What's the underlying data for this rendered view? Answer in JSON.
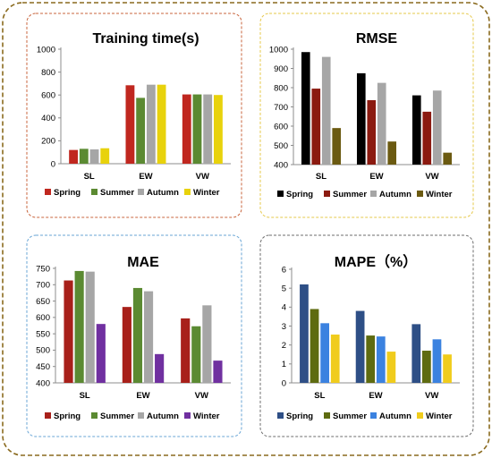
{
  "chart_data": [
    {
      "type": "bar",
      "title": "Training time(s)",
      "categories": [
        "SL",
        "EW",
        "VW"
      ],
      "ylim": [
        0,
        1000
      ],
      "yticks": [
        0,
        200,
        400,
        600,
        800,
        1000
      ],
      "legend_position": "bottom",
      "series": [
        {
          "name": "Spring",
          "color": "#c0271f",
          "values": [
            120,
            685,
            605
          ]
        },
        {
          "name": "Summer",
          "color": "#5b8a32",
          "values": [
            130,
            575,
            605
          ]
        },
        {
          "name": "Autumn",
          "color": "#a6a6a6",
          "values": [
            125,
            690,
            605
          ]
        },
        {
          "name": "Winter",
          "color": "#e8d20c",
          "values": [
            135,
            690,
            600
          ]
        }
      ]
    },
    {
      "type": "bar",
      "title": "RMSE",
      "categories": [
        "SL",
        "EW",
        "VW"
      ],
      "ylim": [
        400,
        1000
      ],
      "yticks": [
        400,
        500,
        600,
        700,
        800,
        900,
        1000
      ],
      "legend_position": "bottom",
      "series": [
        {
          "name": "Spring",
          "color": "#000000",
          "values": [
            985,
            875,
            760
          ]
        },
        {
          "name": "Summer",
          "color": "#8b1a10",
          "values": [
            795,
            735,
            675
          ]
        },
        {
          "name": "Autumn",
          "color": "#a6a6a6",
          "values": [
            960,
            825,
            785
          ]
        },
        {
          "name": "Winter",
          "color": "#6b5a11",
          "values": [
            590,
            520,
            462
          ]
        }
      ]
    },
    {
      "type": "bar",
      "title": "MAE",
      "categories": [
        "SL",
        "EW",
        "VW"
      ],
      "ylim": [
        400,
        750
      ],
      "yticks": [
        400,
        450,
        500,
        550,
        600,
        650,
        700,
        750
      ],
      "legend_position": "bottom",
      "series": [
        {
          "name": "Spring",
          "color": "#a8201a",
          "values": [
            713,
            632,
            597
          ]
        },
        {
          "name": "Summer",
          "color": "#5b8a32",
          "values": [
            742,
            690,
            573
          ]
        },
        {
          "name": "Autumn",
          "color": "#a6a6a6",
          "values": [
            740,
            680,
            637
          ]
        },
        {
          "name": "Winter",
          "color": "#7030a0",
          "values": [
            580,
            488,
            468
          ]
        }
      ]
    },
    {
      "type": "bar",
      "title": "MAPE（%）",
      "categories": [
        "SL",
        "EW",
        "VW"
      ],
      "ylim": [
        0,
        6
      ],
      "yticks": [
        0,
        1,
        2,
        3,
        4,
        5,
        6
      ],
      "legend_position": "bottom",
      "series": [
        {
          "name": "Spring",
          "color": "#2e4f86",
          "values": [
            5.2,
            3.8,
            3.1
          ]
        },
        {
          "name": "Summer",
          "color": "#5e6b10",
          "values": [
            3.9,
            2.5,
            1.7
          ]
        },
        {
          "name": "Autumn",
          "color": "#3b82e0",
          "values": [
            3.15,
            2.45,
            2.3
          ]
        },
        {
          "name": "Winter",
          "color": "#f0cc1c",
          "values": [
            2.55,
            1.65,
            1.5
          ]
        }
      ]
    }
  ],
  "style": {
    "outer_border_color": "#8a6a1e",
    "panel_border_colors": [
      "#c8643c",
      "#e6c84a",
      "#6aa6d6",
      "#6e6e6e"
    ]
  }
}
